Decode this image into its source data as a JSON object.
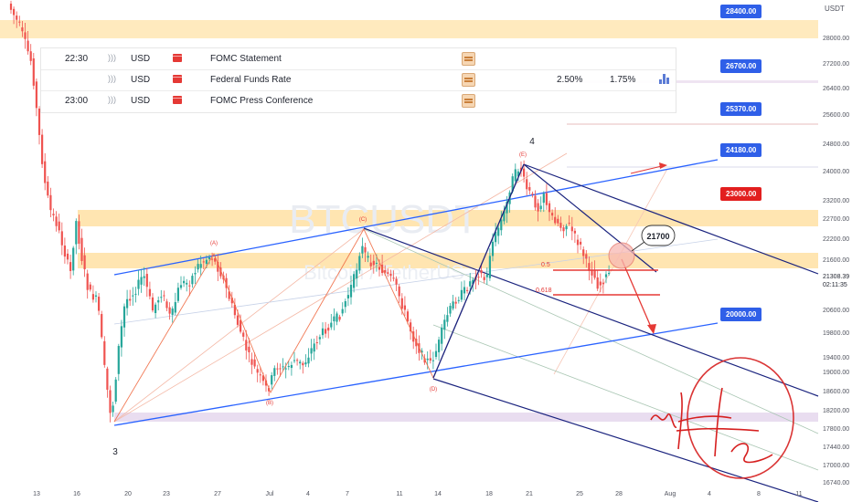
{
  "chart_data": {
    "type": "candlestick",
    "title": "",
    "watermark": {
      "symbol": "BTCUSDT",
      "name": "Bitcoin / TetherUS"
    },
    "currency": "USDT",
    "y_axis_ticks": [
      "28000.00",
      "27200.00",
      "26400.00",
      "25600.00",
      "24800.00",
      "24000.00",
      "23200.00",
      "22700.00",
      "22200.00",
      "21600.00",
      "20600.00",
      "19800.00",
      "19400.00",
      "19000.00",
      "18600.00",
      "18200.00",
      "17800.00",
      "17440.00",
      "17000.00",
      "16740.00"
    ],
    "x_axis_ticks": [
      "13",
      "16",
      "20",
      "23",
      "27",
      "Jul",
      "4",
      "7",
      "11",
      "14",
      "18",
      "21",
      "25",
      "28",
      "Aug",
      "4",
      "8",
      "11"
    ],
    "current_price": {
      "value": "21308.39",
      "countdown": "02:11:35"
    },
    "price_levels": [
      {
        "label": "28400.00",
        "style": "blue"
      },
      {
        "label": "26700.00",
        "style": "blue"
      },
      {
        "label": "25370.00",
        "style": "blue"
      },
      {
        "label": "24180.00",
        "style": "blue"
      },
      {
        "label": "23000.00",
        "style": "red"
      },
      {
        "label": "20000.00",
        "style": "blue"
      }
    ],
    "wave_labels": [
      "3",
      "(A)",
      "(B)",
      "(C)",
      "(D)",
      "(E)",
      "4"
    ],
    "fib_labels": [
      "0.5",
      "0.618"
    ],
    "callout": "21700",
    "signature": "Mr. Hunter Crypto",
    "colors": {
      "up": "#26a69a",
      "down": "#ef5350",
      "channel": "#2962ff",
      "downtrend": "#1a237e",
      "zone": "#ffe0a3",
      "fib": "#e53935"
    }
  },
  "calendar": {
    "rows": [
      {
        "time": "22:30",
        "currency": "USD",
        "event": "FOMC Statement",
        "actual": "",
        "forecast": "",
        "chart": false
      },
      {
        "time": "",
        "currency": "USD",
        "event": "Federal Funds Rate",
        "actual": "2.50%",
        "forecast": "1.75%",
        "chart": true
      },
      {
        "time": "23:00",
        "currency": "USD",
        "event": "FOMC Press Conference",
        "actual": "",
        "forecast": "",
        "chart": false
      }
    ]
  }
}
